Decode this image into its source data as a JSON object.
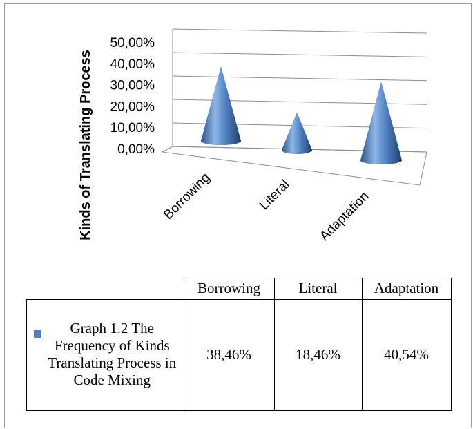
{
  "chart_data": {
    "type": "cone",
    "ylabel": "Kinds of Translating Process",
    "categories": [
      "Borrowing",
      "Literal",
      "Adaptation"
    ],
    "yticks": [
      "0,00%",
      "10,00%",
      "20,00%",
      "30,00%",
      "40,00%",
      "50,00%"
    ],
    "ylim": [
      0,
      50
    ],
    "series": [
      {
        "name": "Graph 1.2 The Frequency of Kinds Translating Process in Code Mixing",
        "values": [
          38.46,
          18.46,
          40.54
        ],
        "labels": [
          "38,46%",
          "18,46%",
          "40,54%"
        ]
      }
    ],
    "color": "#4f81bd",
    "grid": true,
    "legend": "table"
  }
}
